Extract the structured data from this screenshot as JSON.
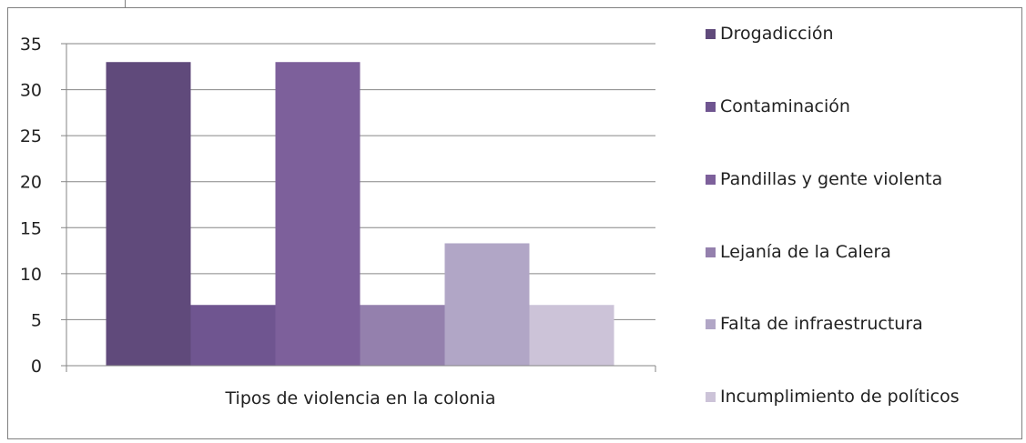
{
  "chart_data": {
    "type": "bar",
    "title": "",
    "xlabel": "",
    "ylabel": "",
    "categories": [
      "Tipos de violencia en la colonia"
    ],
    "ylim": [
      0,
      35
    ],
    "yticks": [
      0,
      5,
      10,
      15,
      20,
      25,
      30,
      35
    ],
    "grid": true,
    "legend_position": "right",
    "series": [
      {
        "name": "Drogadicción",
        "values": [
          33
        ],
        "color": "#604a7b"
      },
      {
        "name": "Contaminación",
        "values": [
          6.6
        ],
        "color": "#6f5590"
      },
      {
        "name": "Pandillas y gente violenta",
        "values": [
          33
        ],
        "color": "#7d609b"
      },
      {
        "name": "Lejanía de la Calera",
        "values": [
          6.6
        ],
        "color": "#9480ad"
      },
      {
        "name": "Falta de infraestructura",
        "values": [
          13.3
        ],
        "color": "#b1a6c6"
      },
      {
        "name": "Incumplimiento de políticos",
        "values": [
          6.6
        ],
        "color": "#ccc3d8"
      }
    ]
  }
}
